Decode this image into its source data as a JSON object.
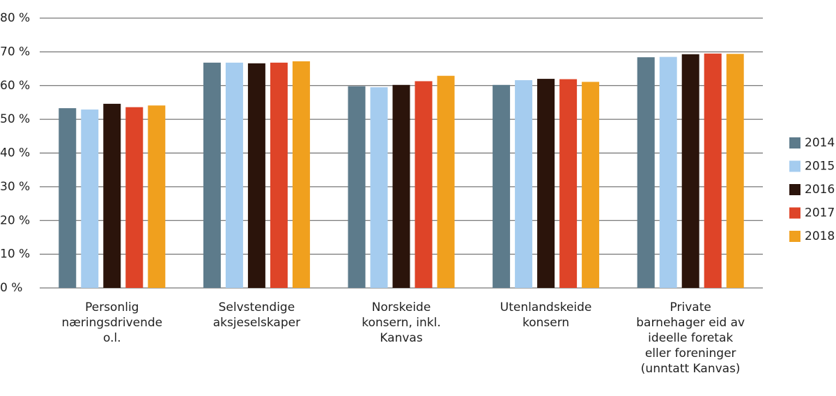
{
  "chart_data": {
    "type": "bar",
    "categories": [
      "Personlig\nnæringsdrivende\no.l.",
      "Selvstendige\naksjeselskaper",
      "Norskeide\nkonsern, inkl.\nKanvas",
      "Utenlandskeide\nkonsern",
      "Private\nbarnehager eid av\nideelle foretak\neller foreninger\n(unntatt Kanvas)"
    ],
    "series": [
      {
        "name": "2014",
        "color": "#5d7b8b",
        "values": [
          53.3,
          66.8,
          59.8,
          60.2,
          68.4
        ]
      },
      {
        "name": "2015",
        "color": "#a5ccef",
        "values": [
          52.9,
          66.8,
          59.5,
          61.6,
          68.5
        ]
      },
      {
        "name": "2016",
        "color": "#2b140b",
        "values": [
          54.6,
          66.6,
          60.2,
          62.0,
          69.3
        ]
      },
      {
        "name": "2017",
        "color": "#de4428",
        "values": [
          53.6,
          66.8,
          61.3,
          61.9,
          69.5
        ]
      },
      {
        "name": "2018",
        "color": "#f0a01e",
        "values": [
          54.1,
          67.2,
          62.9,
          61.1,
          69.4
        ]
      }
    ],
    "ylim": [
      0,
      80
    ],
    "yticks": [
      {
        "value": 0,
        "label": "0 %"
      },
      {
        "value": 10,
        "label": "10 %"
      },
      {
        "value": 20,
        "label": "20 %"
      },
      {
        "value": 30,
        "label": "30 %"
      },
      {
        "value": 40,
        "label": "40 %"
      },
      {
        "value": 50,
        "label": "50 %"
      },
      {
        "value": 60,
        "label": "60 %"
      },
      {
        "value": 70,
        "label": "70 %"
      },
      {
        "value": 80,
        "label": "80 %"
      }
    ],
    "grid": true,
    "legend": "right"
  }
}
